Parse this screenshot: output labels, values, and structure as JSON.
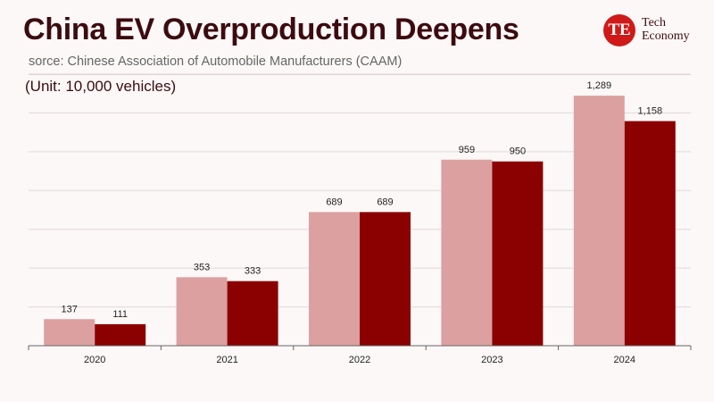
{
  "header": {
    "title": "China EV Overproduction Deepens",
    "source": "sorce: Chinese Association of Automobile Manufacturers (CAAM)",
    "unit": "(Unit: 10,000 vehicles)"
  },
  "logo": {
    "mark": "TE",
    "line1": "Tech",
    "line2": "Economy"
  },
  "colors": {
    "series1": "#dca0a0",
    "series2": "#8b0000",
    "accent": "#cf1a1a",
    "title": "#3d0b0f"
  },
  "chart_data": {
    "type": "bar",
    "categories": [
      "2020",
      "2021",
      "2022",
      "2023",
      "2024"
    ],
    "series": [
      {
        "values": [
          137,
          353,
          689,
          959,
          1289
        ],
        "labels": [
          "137",
          "353",
          "689",
          "959",
          "1,289"
        ]
      },
      {
        "values": [
          111,
          333,
          689,
          950,
          1158
        ],
        "labels": [
          "111",
          "333",
          "689",
          "950",
          "1,158"
        ]
      }
    ],
    "ylim": [
      0,
      1400
    ],
    "grid": true,
    "legend": "none"
  }
}
